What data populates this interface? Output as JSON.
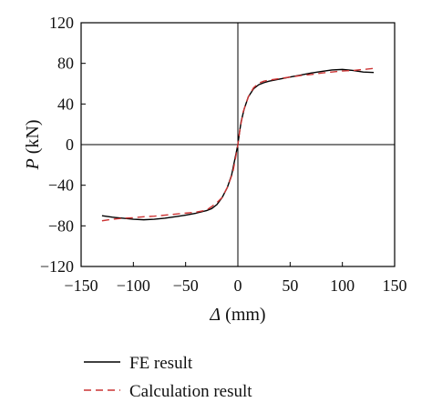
{
  "chart_data": {
    "type": "line",
    "xlabel": {
      "symbol": "Δ",
      "unit": " (mm)"
    },
    "ylabel": {
      "symbol": "P",
      "unit": " (kN)"
    },
    "xlim": [
      -150,
      150
    ],
    "ylim": [
      -120,
      120
    ],
    "xticks": [
      -150,
      -100,
      -50,
      0,
      50,
      100,
      150
    ],
    "yticks": [
      -120,
      -80,
      -40,
      0,
      40,
      80,
      120
    ],
    "zero_lines": true,
    "grid": false,
    "legend_position": "bottom",
    "series": [
      {
        "name": "FE result",
        "color": "#000000",
        "dash": "solid",
        "x": [
          -130,
          -120,
          -110,
          -100,
          -90,
          -80,
          -70,
          -60,
          -50,
          -40,
          -30,
          -25,
          -20,
          -15,
          -10,
          -6,
          -3,
          -1,
          0,
          1,
          3,
          6,
          10,
          15,
          20,
          25,
          30,
          40,
          50,
          60,
          70,
          80,
          90,
          100,
          110,
          120,
          130
        ],
        "y": [
          -70,
          -71.5,
          -72.5,
          -73.5,
          -74,
          -73.5,
          -72.5,
          -71,
          -69.5,
          -67.5,
          -65,
          -63,
          -59,
          -52,
          -42,
          -30,
          -15,
          -5,
          0,
          8,
          22,
          35,
          47,
          55,
          59,
          61,
          62.5,
          64.5,
          66.5,
          68.5,
          70.5,
          72,
          73.5,
          74,
          73,
          71.5,
          71
        ]
      },
      {
        "name": "Calculation result",
        "color": "#cc3333",
        "dash": "dashed",
        "x": [
          -130,
          -120,
          -110,
          -100,
          -90,
          -80,
          -70,
          -60,
          -50,
          -40,
          -30,
          -25,
          -20,
          -15,
          -10,
          -5,
          -2,
          0,
          2,
          5,
          10,
          15,
          20,
          25,
          30,
          40,
          50,
          60,
          70,
          80,
          90,
          100,
          110,
          120,
          130
        ],
        "y": [
          -75,
          -73.5,
          -72.5,
          -72,
          -71,
          -70.5,
          -69.5,
          -68.5,
          -67.5,
          -66.5,
          -64.5,
          -61,
          -57,
          -52,
          -42,
          -28,
          -12,
          0,
          15,
          32,
          47,
          56,
          60.5,
          62.5,
          63.5,
          65,
          66.5,
          68,
          69,
          70.5,
          71.5,
          72.5,
          73,
          74,
          75
        ]
      }
    ]
  }
}
